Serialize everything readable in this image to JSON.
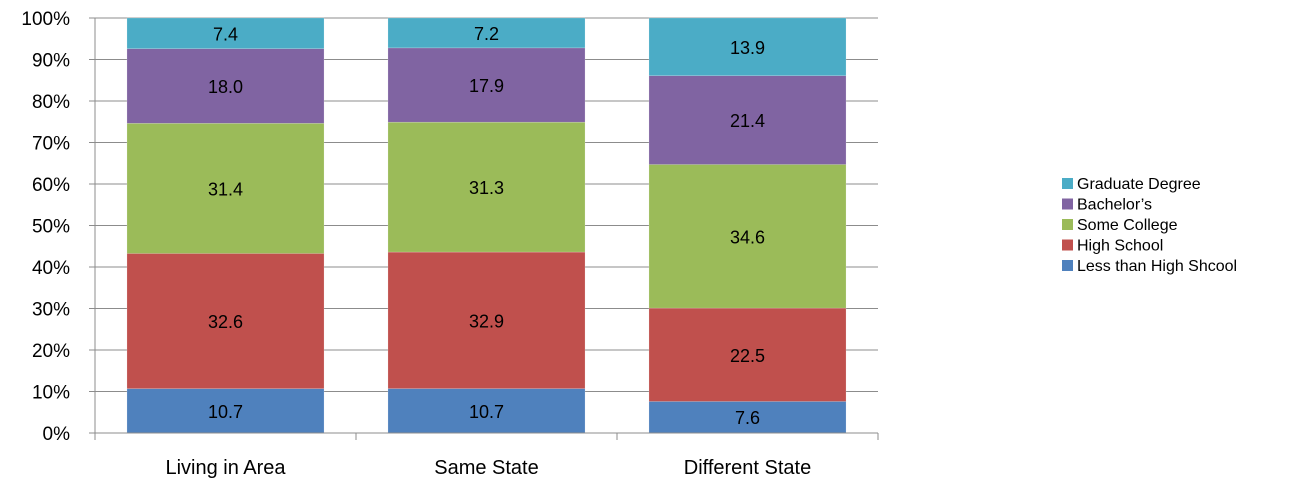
{
  "chart_data": {
    "type": "bar",
    "stacked": true,
    "percent_stacked": true,
    "categories": [
      "Living in Area",
      "Same State",
      "Different State"
    ],
    "series": [
      {
        "name": "Less than High Shcool",
        "color": "#4f81bd",
        "values": [
          10.7,
          10.7,
          7.6
        ]
      },
      {
        "name": "High School",
        "color": "#c0504d",
        "values": [
          32.6,
          32.9,
          22.5
        ]
      },
      {
        "name": "Some College",
        "color": "#9bbb59",
        "values": [
          31.4,
          31.3,
          34.6
        ]
      },
      {
        "name": "Bachelor’s",
        "color": "#8064a2",
        "values": [
          18.0,
          17.9,
          21.4
        ]
      },
      {
        "name": "Graduate Degree",
        "color": "#4bacc6",
        "values": [
          7.4,
          7.2,
          13.9
        ]
      }
    ],
    "ylim": [
      0,
      100
    ],
    "yticks": [
      "0%",
      "10%",
      "20%",
      "30%",
      "40%",
      "50%",
      "60%",
      "70%",
      "80%",
      "90%",
      "100%"
    ],
    "grid": true,
    "legend_position": "right",
    "legend_order": [
      "Graduate Degree",
      "Bachelor’s",
      "Some College",
      "High School",
      "Less than High Shcool"
    ]
  }
}
